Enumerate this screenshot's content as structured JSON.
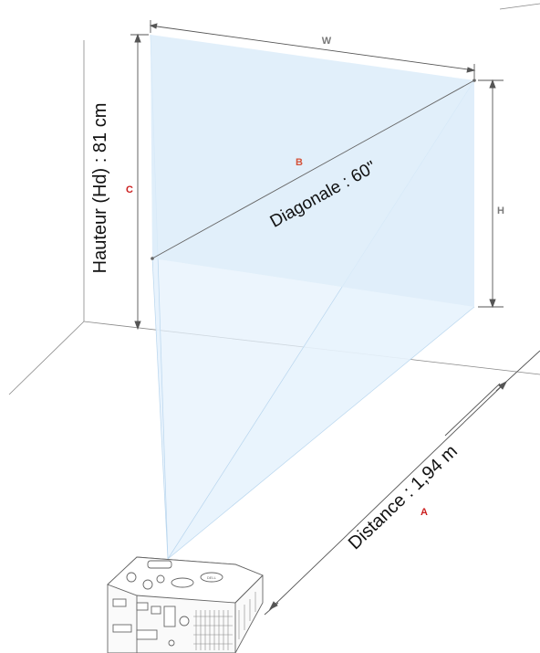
{
  "labels": {
    "width": "W",
    "height": "H",
    "diagonal_letter": "B",
    "screen_height_letter": "C",
    "distance_letter": "A",
    "diagonal": "Diagonale : 60\"",
    "screen_height": "Hauteur (Hd) : 81 cm",
    "distance": "Distance : 1,94 m"
  },
  "colors": {
    "letter_red": "#cc1f1f",
    "letter_orange": "#d4533a",
    "letter_gray": "#7a7a7a",
    "screen_fill": "#e4f1fb",
    "beam_fill": "#eaf4fd",
    "line": "#555555"
  },
  "icons": [
    "projector-icon"
  ]
}
